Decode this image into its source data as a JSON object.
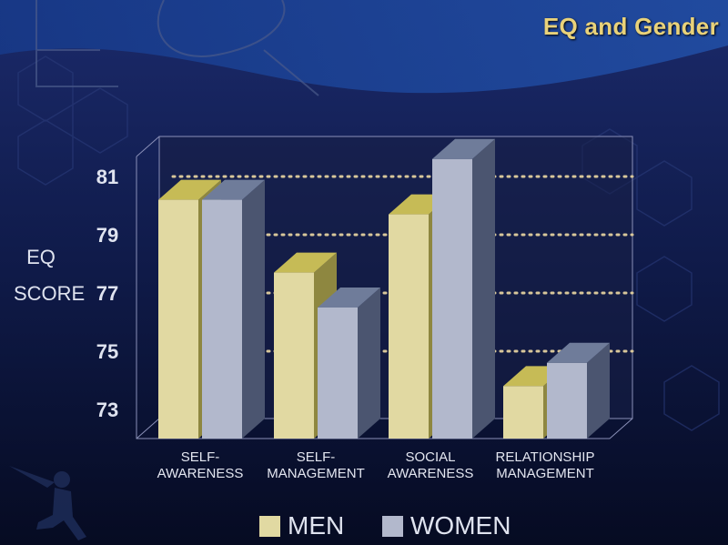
{
  "title": "EQ and Gender",
  "colors": {
    "men": "#e1d9a2",
    "women": "#b2b8cc"
  },
  "chart_data": {
    "type": "bar",
    "title": "EQ and Gender",
    "ylabel_lines": [
      "EQ",
      "SCORE"
    ],
    "yticks": [
      73,
      75,
      77,
      79,
      81
    ],
    "ylim": [
      72,
      82
    ],
    "grid": true,
    "legend_position": "bottom",
    "categories": [
      [
        "SELF-",
        "AWARENESS"
      ],
      [
        "SELF-",
        "MANAGEMENT"
      ],
      [
        "SOCIAL",
        "AWARENESS"
      ],
      [
        "RELATIONSHIP",
        "MANAGEMENT"
      ]
    ],
    "series": [
      {
        "name": "MEN",
        "values": [
          80.2,
          77.7,
          79.7,
          73.8
        ]
      },
      {
        "name": "WOMEN",
        "values": [
          80.2,
          76.5,
          81.6,
          74.6
        ]
      }
    ]
  }
}
